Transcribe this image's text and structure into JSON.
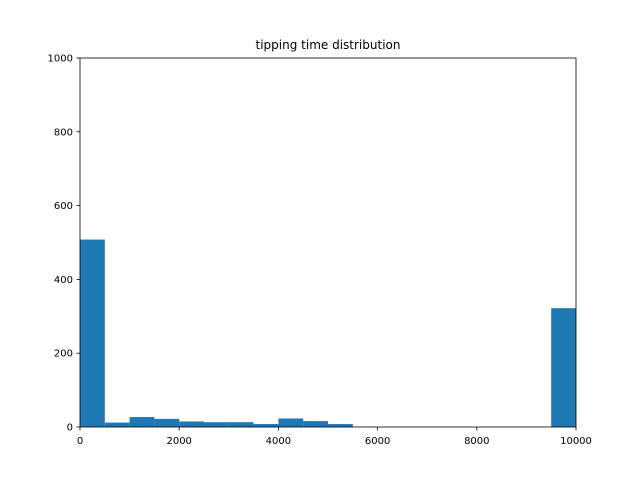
{
  "chart_data": {
    "type": "bar",
    "title": "tipping time distribution",
    "xlabel": "",
    "ylabel": "",
    "xlim": [
      0,
      10000
    ],
    "ylim": [
      0,
      1000
    ],
    "xticks": [
      0,
      2000,
      4000,
      6000,
      8000,
      10000
    ],
    "yticks": [
      0,
      200,
      400,
      600,
      800,
      1000
    ],
    "bar_color": "#1f77b4",
    "grid": false,
    "bins": [
      {
        "x0": 0,
        "x1": 500,
        "count": 508
      },
      {
        "x0": 500,
        "x1": 1000,
        "count": 12
      },
      {
        "x0": 1000,
        "x1": 1500,
        "count": 27
      },
      {
        "x0": 1500,
        "x1": 2000,
        "count": 22
      },
      {
        "x0": 2000,
        "x1": 2500,
        "count": 15
      },
      {
        "x0": 2500,
        "x1": 3000,
        "count": 13
      },
      {
        "x0": 3000,
        "x1": 3500,
        "count": 13
      },
      {
        "x0": 3500,
        "x1": 4000,
        "count": 8
      },
      {
        "x0": 4000,
        "x1": 4500,
        "count": 23
      },
      {
        "x0": 4500,
        "x1": 5000,
        "count": 16
      },
      {
        "x0": 5000,
        "x1": 5500,
        "count": 8
      },
      {
        "x0": 5500,
        "x1": 6000,
        "count": 0
      },
      {
        "x0": 6000,
        "x1": 6500,
        "count": 0
      },
      {
        "x0": 6500,
        "x1": 7000,
        "count": 0
      },
      {
        "x0": 7000,
        "x1": 7500,
        "count": 0
      },
      {
        "x0": 7500,
        "x1": 8000,
        "count": 0
      },
      {
        "x0": 8000,
        "x1": 8500,
        "count": 0
      },
      {
        "x0": 8500,
        "x1": 9000,
        "count": 0
      },
      {
        "x0": 9000,
        "x1": 9500,
        "count": 0
      },
      {
        "x0": 9500,
        "x1": 10000,
        "count": 322
      }
    ]
  }
}
